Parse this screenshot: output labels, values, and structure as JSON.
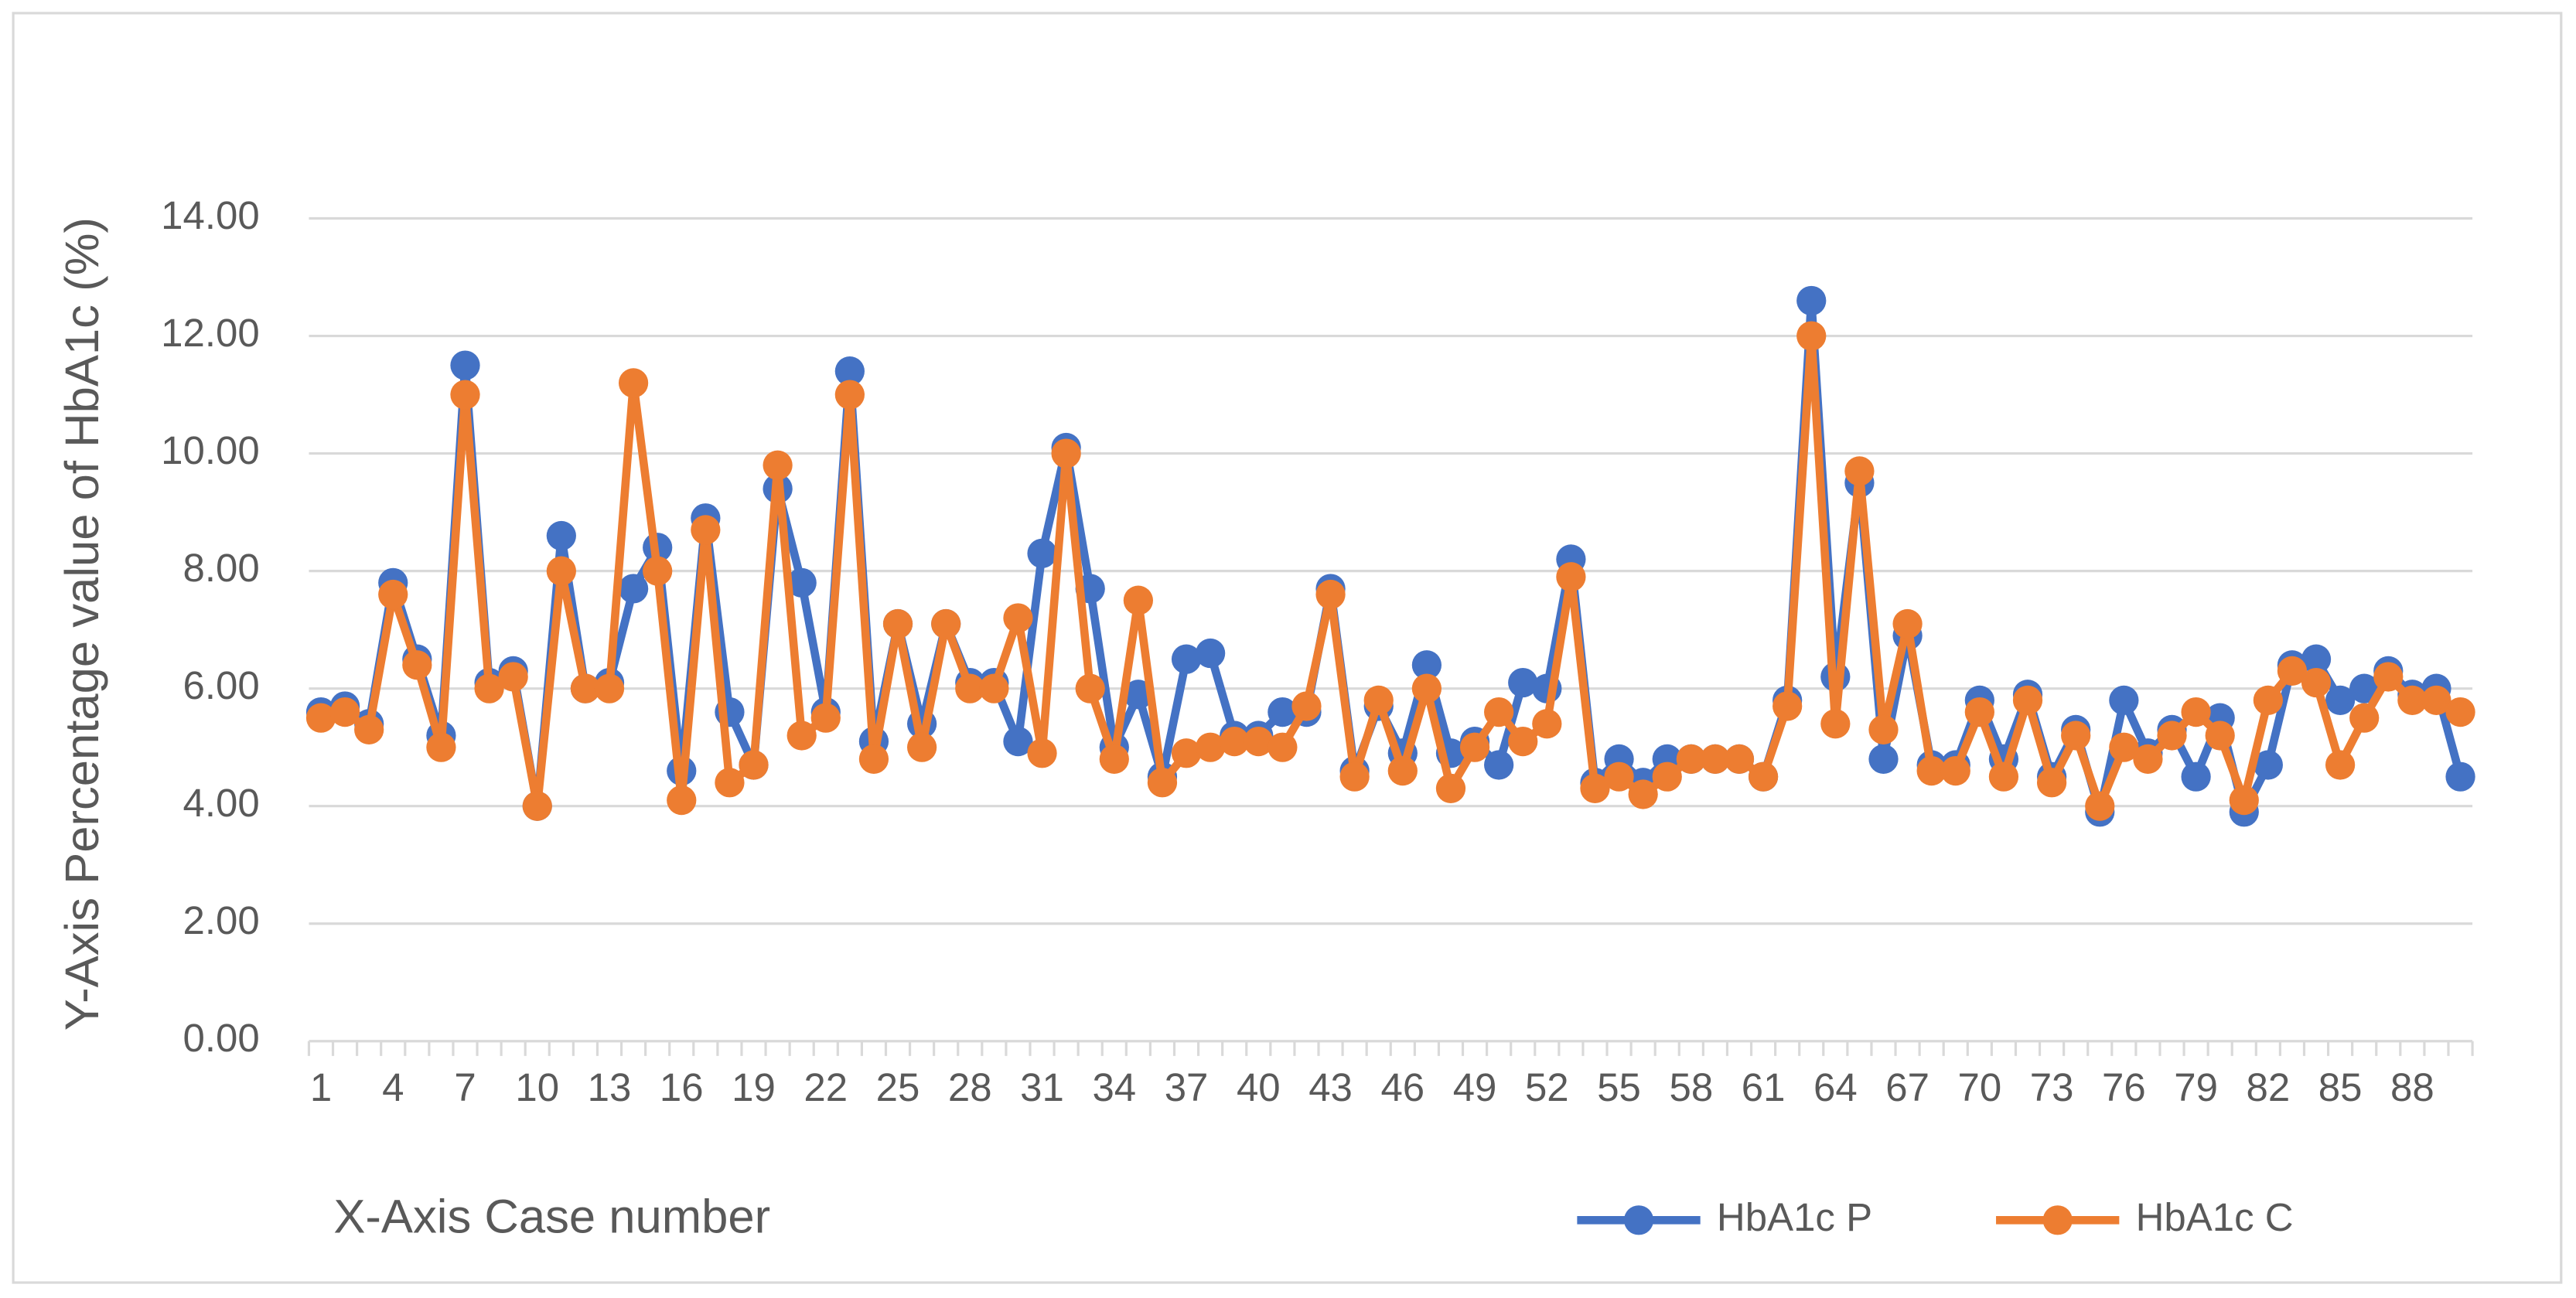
{
  "chart_data": {
    "type": "line",
    "ylabel": "Y-Axis Percentage value of HbA1c (%)",
    "xlabel": "X-Axis Case number",
    "categories": [
      1,
      null,
      null,
      4,
      null,
      null,
      7,
      null,
      null,
      10,
      null,
      null,
      13,
      null,
      null,
      16,
      null,
      null,
      19,
      null,
      null,
      22,
      null,
      null,
      25,
      null,
      null,
      28,
      null,
      null,
      31,
      null,
      null,
      34,
      null,
      null,
      37,
      null,
      null,
      40,
      null,
      null,
      43,
      null,
      null,
      46,
      null,
      null,
      49,
      null,
      null,
      52,
      null,
      null,
      55,
      null,
      null,
      58,
      null,
      null,
      61,
      null,
      null,
      64,
      null,
      null,
      67,
      null,
      null,
      70,
      null,
      null,
      73,
      null,
      null,
      76,
      null,
      null,
      79,
      null,
      null,
      82,
      null,
      null,
      85,
      null,
      null,
      88,
      null,
      null
    ],
    "series": [
      {
        "name": "HbA1c P",
        "color": "#4472c4",
        "values": [
          5.6,
          5.7,
          5.4,
          7.8,
          6.5,
          5.2,
          11.5,
          6.1,
          6.3,
          4.0,
          8.6,
          6.0,
          6.1,
          7.7,
          8.4,
          4.6,
          8.9,
          5.6,
          4.7,
          9.4,
          7.8,
          5.6,
          11.4,
          5.1,
          7.1,
          5.4,
          7.1,
          6.1,
          6.1,
          5.1,
          8.3,
          10.1,
          7.7,
          5.0,
          5.9,
          4.5,
          6.5,
          6.6,
          5.2,
          5.2,
          5.6,
          5.6,
          7.7,
          4.6,
          5.7,
          4.9,
          6.4,
          4.9,
          5.1,
          4.7,
          6.1,
          6.0,
          8.2,
          4.4,
          4.8,
          4.4,
          4.8,
          4.8,
          4.8,
          4.8,
          4.5,
          5.8,
          12.6,
          6.2,
          9.5,
          4.8,
          6.9,
          4.7,
          4.7,
          5.8,
          4.8,
          5.9,
          4.5,
          5.3,
          3.9,
          5.8,
          4.9,
          5.3,
          4.5,
          5.5,
          3.9,
          4.7,
          6.4,
          6.5,
          5.8,
          6.0,
          6.3,
          5.9,
          6.0,
          4.5
        ]
      },
      {
        "name": "HbA1c C",
        "color": "#ed7d31",
        "values": [
          5.5,
          5.6,
          5.3,
          7.6,
          6.4,
          5.0,
          11.0,
          6.0,
          6.2,
          4.0,
          8.0,
          6.0,
          6.0,
          11.2,
          8.0,
          4.1,
          8.7,
          4.4,
          4.7,
          9.8,
          5.2,
          5.5,
          11.0,
          4.8,
          7.1,
          5.0,
          7.1,
          6.0,
          6.0,
          7.2,
          4.9,
          10.0,
          6.0,
          4.8,
          7.5,
          4.4,
          4.9,
          5.0,
          5.1,
          5.1,
          5.0,
          5.7,
          7.6,
          4.5,
          5.8,
          4.6,
          6.0,
          4.3,
          5.0,
          5.6,
          5.1,
          5.4,
          7.9,
          4.3,
          4.5,
          4.2,
          4.5,
          4.8,
          4.8,
          4.8,
          4.5,
          5.7,
          12.0,
          5.4,
          9.7,
          5.3,
          7.1,
          4.6,
          4.6,
          5.6,
          4.5,
          5.8,
          4.4,
          5.2,
          4.0,
          5.0,
          4.8,
          5.2,
          5.6,
          5.2,
          4.1,
          5.8,
          6.3,
          6.1,
          4.7,
          5.5,
          6.2,
          5.8,
          5.8,
          5.6
        ]
      }
    ],
    "ylim": [
      0,
      14
    ],
    "yticks": [
      {
        "value": 0,
        "label": "0.00"
      },
      {
        "value": 2,
        "label": "2.00"
      },
      {
        "value": 4,
        "label": "4.00"
      },
      {
        "value": 6,
        "label": "6.00"
      },
      {
        "value": 8,
        "label": "8.00"
      },
      {
        "value": 10,
        "label": "10.00"
      },
      {
        "value": 12,
        "label": "12.00"
      },
      {
        "value": 14,
        "label": "14.00"
      }
    ],
    "grid": true,
    "legend": "bottom-right"
  }
}
